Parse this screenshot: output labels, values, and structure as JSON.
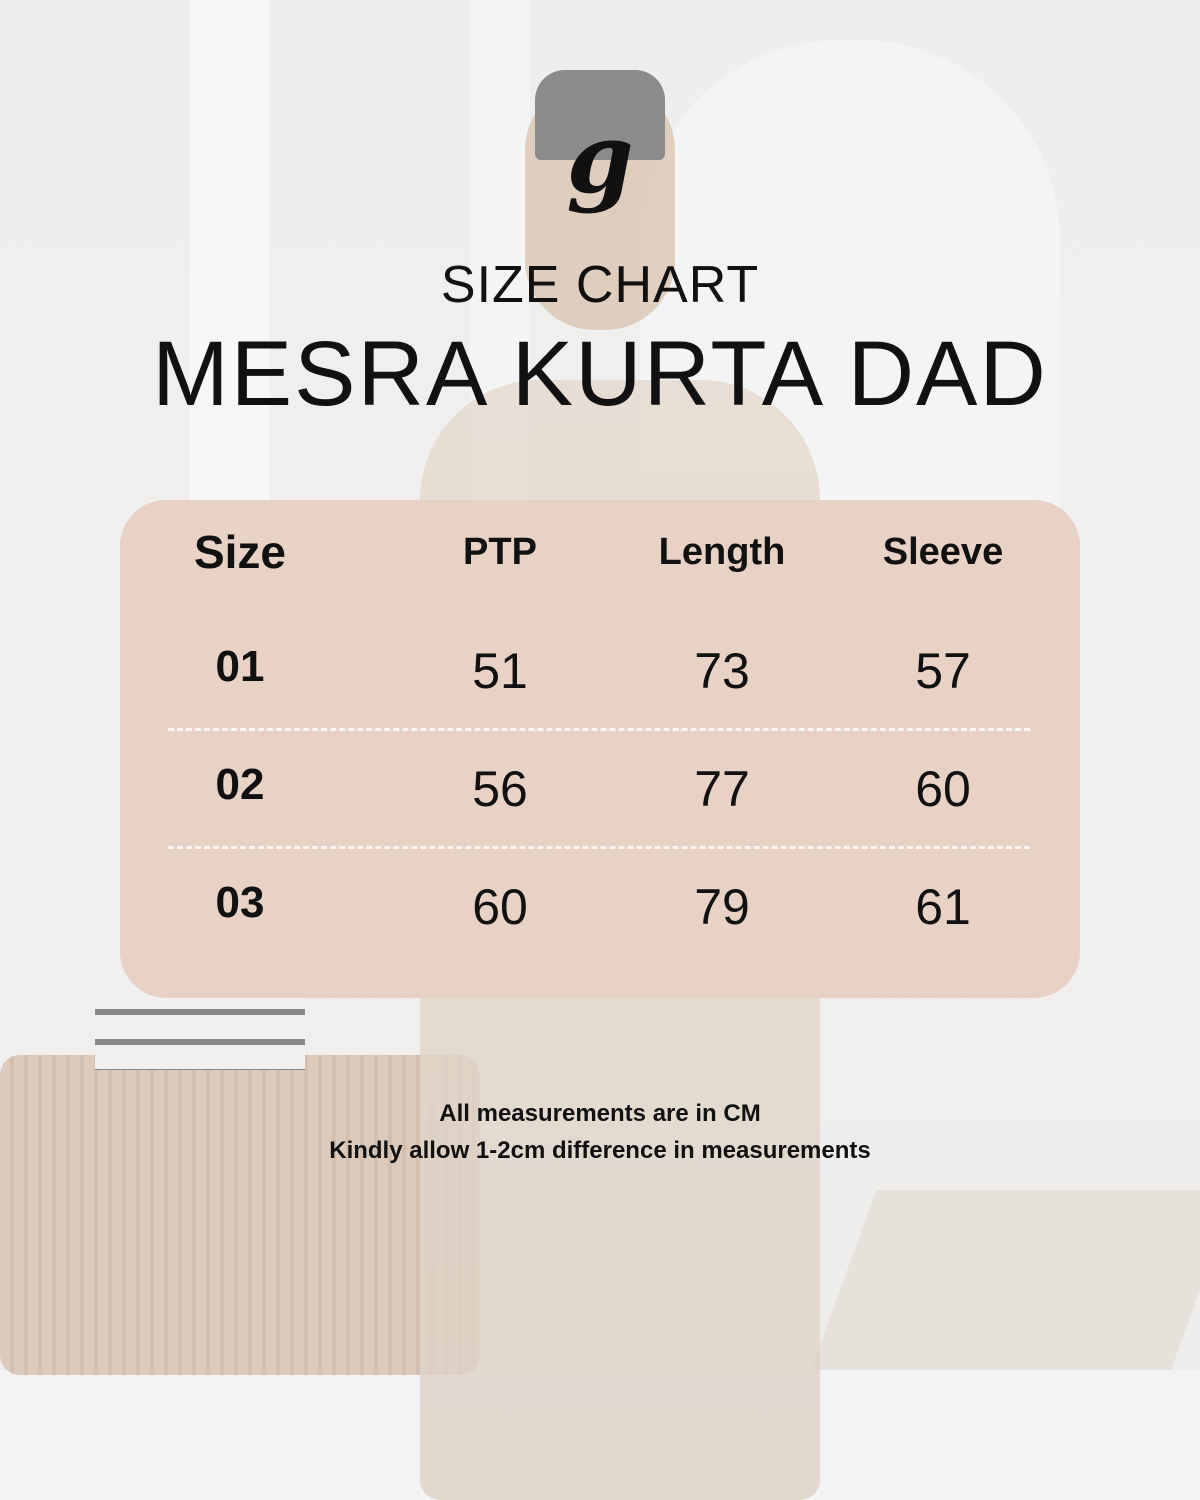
{
  "logo": {
    "text": "g"
  },
  "header": {
    "subtitle": "SIZE CHART",
    "title": "MESRA KURTA DAD"
  },
  "table": {
    "columns": [
      "Size",
      "PTP",
      "Length",
      "Sleeve"
    ],
    "rows": [
      [
        "01",
        "51",
        "73",
        "57"
      ],
      [
        "02",
        "56",
        "77",
        "60"
      ],
      [
        "03",
        "60",
        "79",
        "61"
      ]
    ],
    "background_color": "#e8d2c6"
  },
  "notes": [
    "All measurements are in CM",
    "Kindly allow 1-2cm difference in measurements"
  ]
}
